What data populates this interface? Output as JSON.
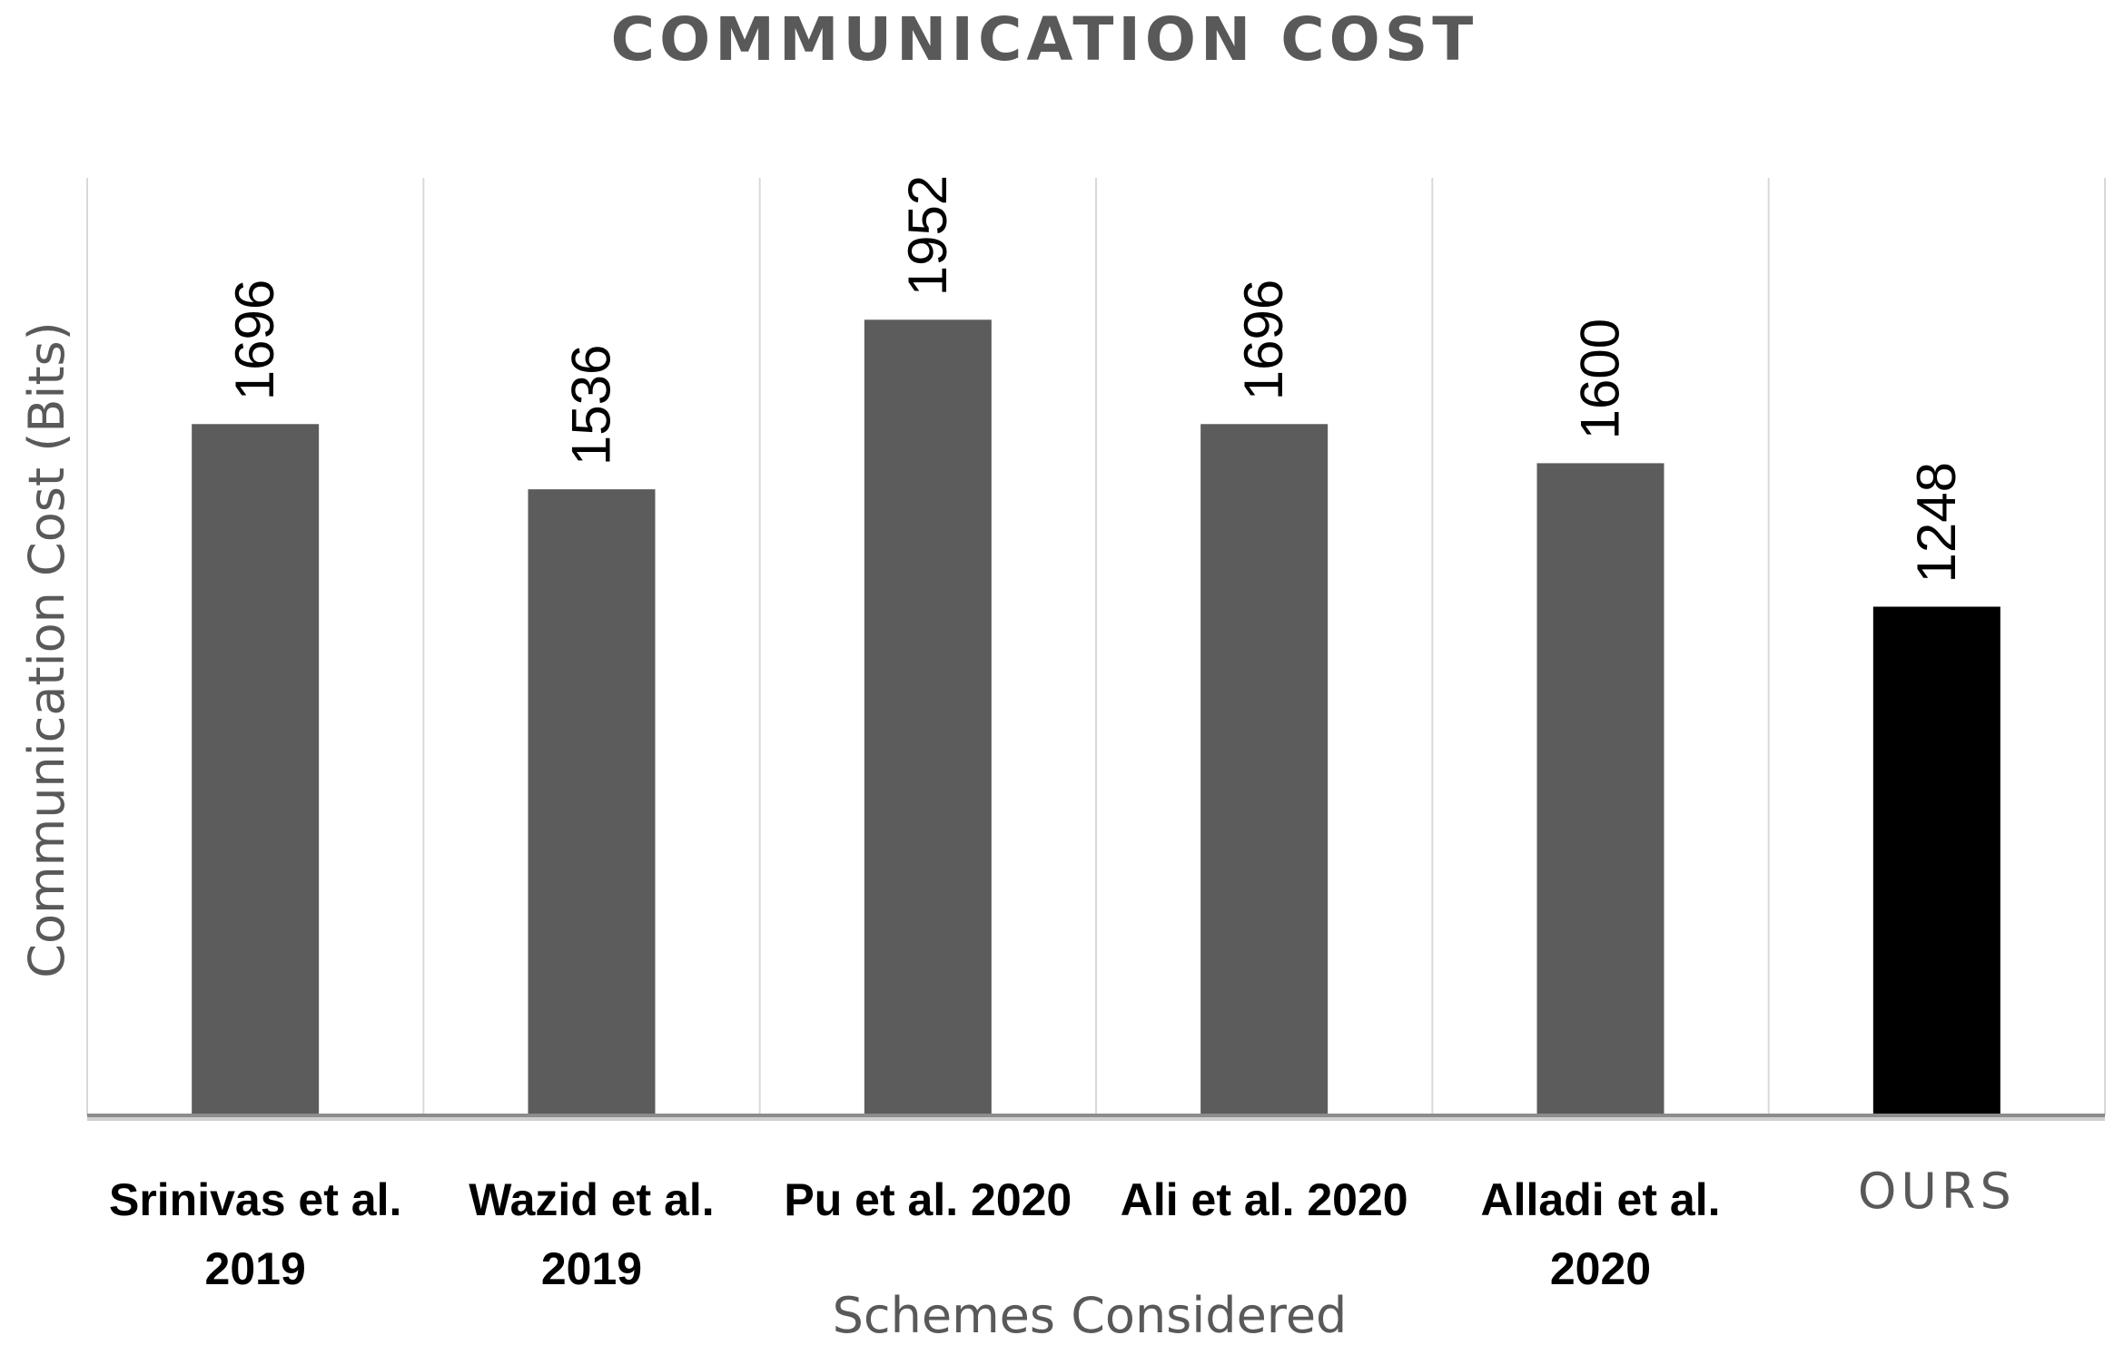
{
  "colors": {
    "bar": "#5c5c5c",
    "bar_highlight": "#000000",
    "title": "#595959",
    "axis_title": "#595959",
    "tick_bold": "#000000",
    "tick_plain": "#595959",
    "value_label": "#000000",
    "grid": "#d9d9d9",
    "axis": "#8c8c8c"
  },
  "chart_data": {
    "type": "bar",
    "title": "COMMUNICATION COST",
    "xlabel": "Schemes Considered",
    "ylabel": "Communication Cost (Bits)",
    "ylim": [
      0,
      2300
    ],
    "grid": "vertical",
    "categories": [
      [
        "Srinivas et al.",
        "2019"
      ],
      [
        "Wazid et al.",
        "2019"
      ],
      [
        "Pu et al. 2020"
      ],
      [
        "Ali et al. 2020"
      ],
      [
        "Alladi et al.",
        "2020"
      ],
      [
        "OURS"
      ]
    ],
    "values": [
      1696,
      1536,
      1952,
      1696,
      1600,
      1248
    ],
    "highlight_index": 5
  }
}
